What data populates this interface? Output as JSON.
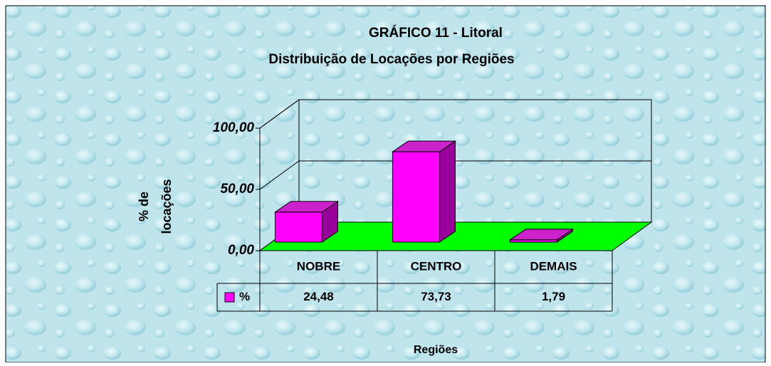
{
  "chart_data": {
    "type": "bar3d",
    "title": "GRÁFICO 11 - Litoral",
    "subtitle": "Distribuição de Locações por Regiões",
    "y_label": [
      "% de",
      "locações"
    ],
    "x_label": "Regiões",
    "categories": [
      "NOBRE",
      "CENTRO",
      "DEMAIS"
    ],
    "series": [
      {
        "name": "%",
        "color": "#ff00ff",
        "values": [
          24.48,
          73.73,
          1.79
        ],
        "value_labels": [
          "24,48",
          "73,73",
          "1,79"
        ]
      }
    ],
    "ylim": [
      0,
      100
    ],
    "yticks": [
      {
        "value": 0,
        "label": "0,00"
      },
      {
        "value": 50,
        "label": "50,00"
      },
      {
        "value": 100,
        "label": "100,00"
      }
    ],
    "grid": true,
    "data_table": true
  }
}
